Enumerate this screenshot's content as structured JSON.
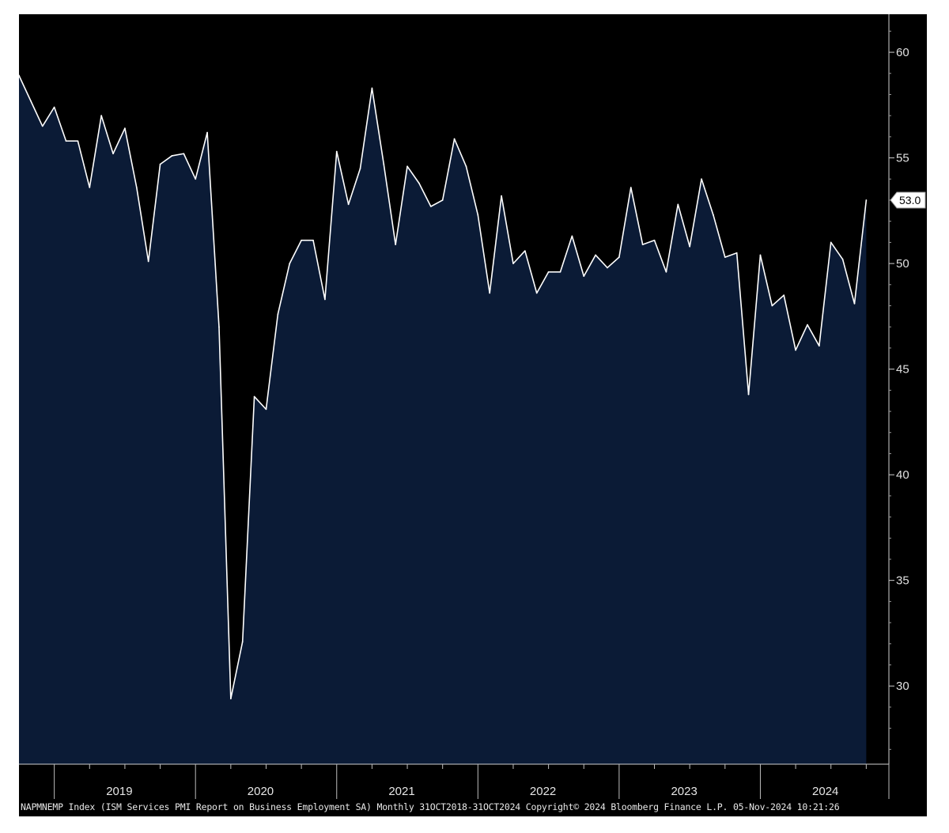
{
  "chart_data": {
    "type": "area",
    "x_start": "2018-10",
    "frequency": "monthly",
    "values": [
      58.9,
      57.7,
      56.5,
      57.4,
      55.8,
      55.8,
      53.6,
      57.0,
      55.2,
      56.4,
      53.6,
      50.1,
      54.7,
      55.1,
      55.2,
      54.0,
      56.2,
      47.0,
      29.4,
      32.1,
      43.7,
      43.1,
      47.6,
      50.0,
      51.1,
      51.1,
      48.3,
      55.3,
      52.8,
      54.5,
      58.3,
      54.7,
      50.9,
      54.6,
      53.8,
      52.7,
      53.0,
      55.9,
      54.6,
      52.3,
      48.6,
      53.2,
      50.0,
      50.6,
      48.6,
      49.6,
      49.6,
      51.3,
      49.4,
      50.4,
      49.8,
      50.3,
      53.6,
      50.9,
      51.1,
      49.6,
      52.8,
      50.8,
      54.0,
      52.3,
      50.3,
      50.5,
      43.8,
      50.4,
      48.0,
      48.5,
      45.9,
      47.1,
      46.1,
      51.0,
      50.2,
      48.1,
      53.0
    ],
    "x_tick_labels": [
      "2019",
      "2020",
      "2021",
      "2022",
      "2023",
      "2024"
    ],
    "y_tick_labels": [
      "30",
      "35",
      "40",
      "45",
      "50",
      "55",
      "60"
    ],
    "y_ticks": [
      30,
      35,
      40,
      45,
      50,
      55,
      60
    ],
    "ylim": [
      26.3,
      61.8
    ],
    "yaxis_position": "right",
    "grid": false,
    "last_value_label": "53.0",
    "line_color": "#ffffff",
    "fill_color": "#0b1b36",
    "background_color": "#000000"
  },
  "footer": "NAPMNEMP Index (ISM Services PMI Report on Business Employment SA)  Monthly 31OCT2018-31OCT2024 Copyright© 2024 Bloomberg Finance L.P. 05-Nov-2024 10:21:26"
}
